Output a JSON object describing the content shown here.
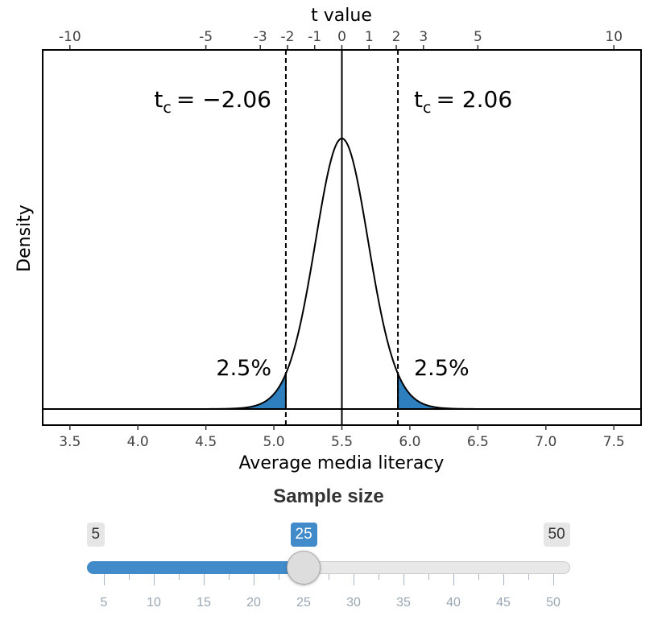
{
  "chart_data": {
    "type": "area",
    "title": "",
    "xlabel": "Average media literacy",
    "ylabel": "Density",
    "xlim": [
      3.3,
      7.7
    ],
    "x_ticks": [
      "3.5",
      "4.0",
      "4.5",
      "5.0",
      "5.5",
      "6.0",
      "6.5",
      "7.0",
      "7.5"
    ],
    "secondary_x": {
      "label": "t value",
      "ticks": [
        "-10",
        "-5",
        "-3",
        "-2",
        "-1",
        "0",
        "1",
        "2",
        "3",
        "5",
        "10"
      ],
      "tick_values": [
        -10,
        -5,
        -3,
        -2,
        -1,
        0,
        1,
        2,
        3,
        5,
        10
      ]
    },
    "distribution": {
      "name": "t distribution",
      "mean": 5.5,
      "df": 24,
      "t_per_unit": 5
    },
    "critical_values": [
      {
        "t": -2.06,
        "x": 5.088,
        "label": "t_c = −2.06",
        "base": "t",
        "sub": "c",
        "rhs": "= −2.06"
      },
      {
        "t": 2.06,
        "x": 5.912,
        "label": "t_c = 2.06",
        "base": "t",
        "sub": "c",
        "rhs": "= 2.06"
      }
    ],
    "tail_labels": [
      "2.5%",
      "2.5%"
    ],
    "tail_color": "#2e7fbd",
    "grid": false
  },
  "slider": {
    "title": "Sample size",
    "min": 5,
    "max": 50,
    "value": 25,
    "min_label": "5",
    "max_label": "50",
    "value_label": "25",
    "major_ticks": [
      "5",
      "10",
      "15",
      "20",
      "25",
      "30",
      "35",
      "40",
      "45",
      "50"
    ],
    "accent_color": "#428bca"
  }
}
